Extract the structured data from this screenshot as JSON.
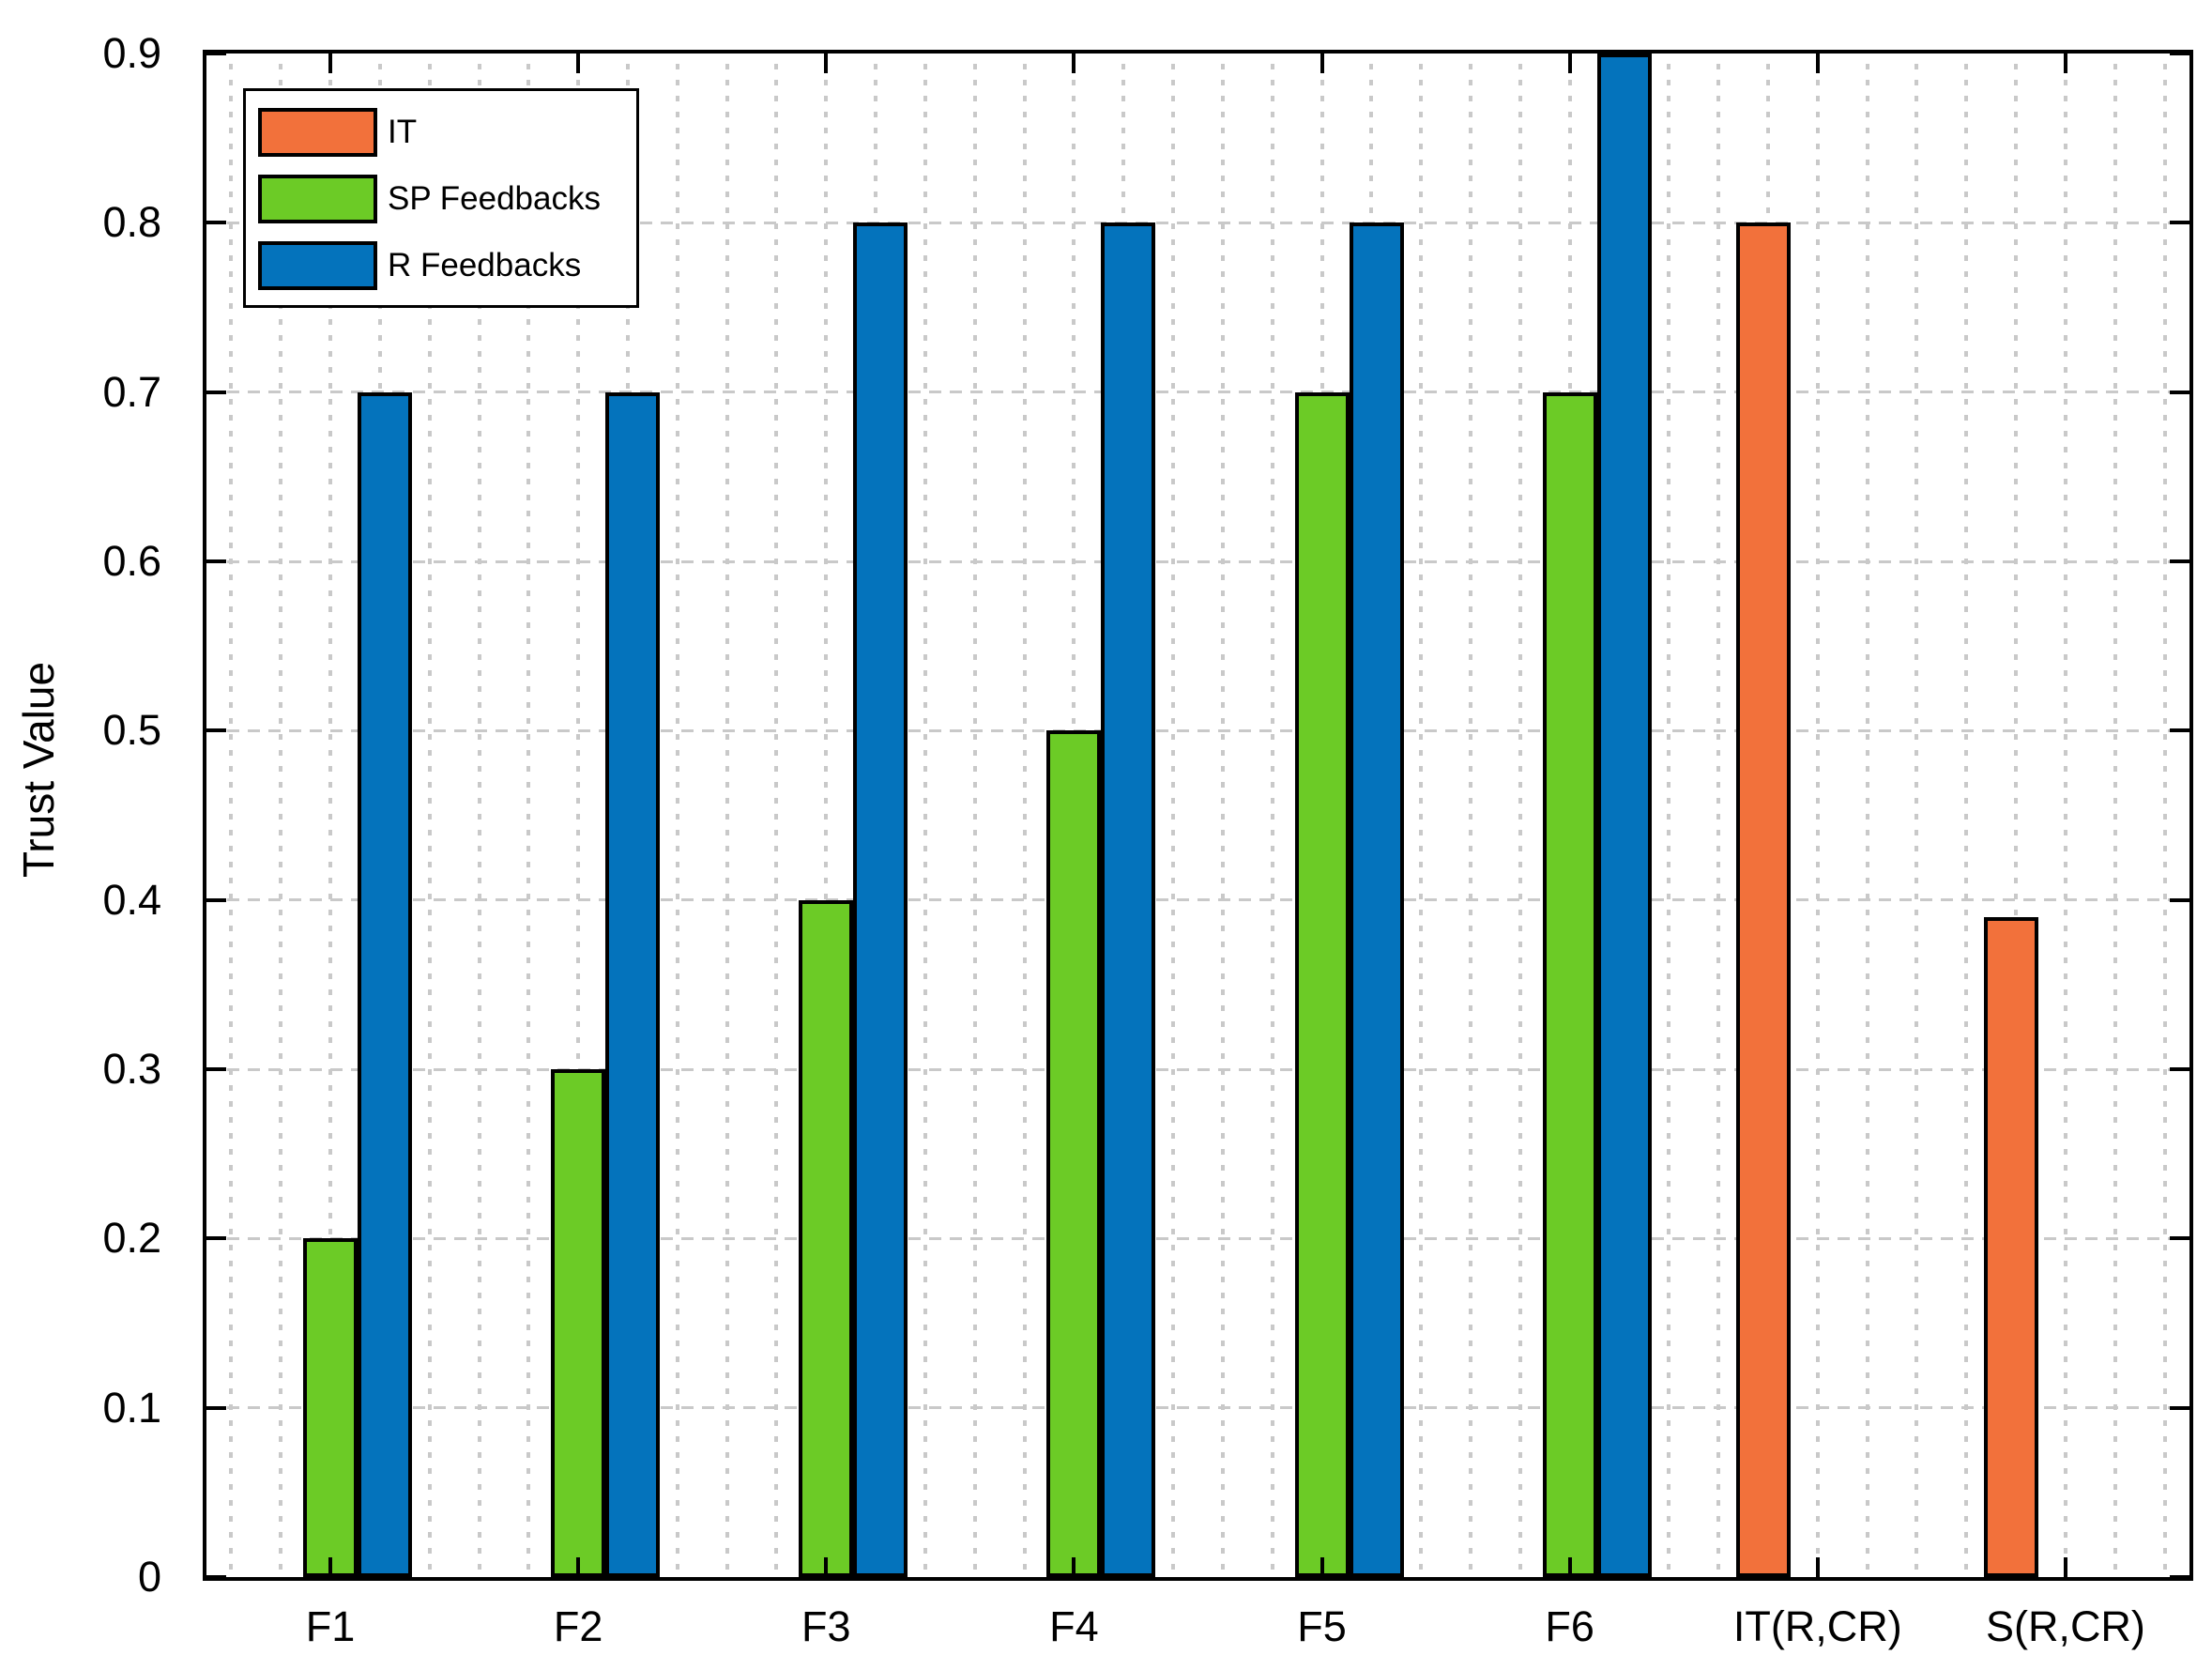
{
  "chart_data": {
    "type": "bar",
    "title": "",
    "xlabel": "",
    "ylabel": "Trust Value",
    "categories": [
      "F1",
      "F2",
      "F3",
      "F4",
      "F5",
      "F6",
      "IT(R,CR)",
      "S(R,CR)"
    ],
    "series": [
      {
        "name": "IT",
        "color": "#F2713B",
        "values": [
          0,
          0,
          0,
          0,
          0,
          0,
          0.8,
          0.39
        ]
      },
      {
        "name": "SP Feedbacks",
        "color": "#6CCB26",
        "values": [
          0.2,
          0.3,
          0.4,
          0.5,
          0.7,
          0.7,
          0,
          0
        ]
      },
      {
        "name": "R Feedbacks",
        "color": "#0473BC",
        "values": [
          0.7,
          0.7,
          0.8,
          0.8,
          0.8,
          0.9,
          0,
          0
        ]
      }
    ],
    "ylim": [
      0,
      0.9
    ],
    "yticks": [
      "0",
      "0.1",
      "0.2",
      "0.3",
      "0.4",
      "0.5",
      "0.6",
      "0.7",
      "0.8",
      "0.9"
    ],
    "legend": {
      "position": "top-left"
    },
    "grid": {
      "horizontal": "major",
      "vertical": "minor",
      "minor_per_major": 5,
      "style": "dotted",
      "color": "#c9c9c9"
    },
    "frame_color": "#000000",
    "bar_edge_color": "#000000"
  }
}
